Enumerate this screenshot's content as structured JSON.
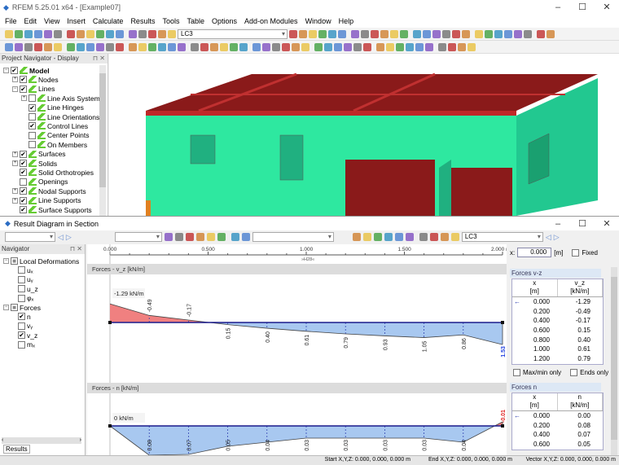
{
  "app": {
    "title": "RFEM 5.25.01 x64 - [Example07]",
    "win_controls": [
      "–",
      "☐",
      "✕"
    ]
  },
  "menu": [
    "File",
    "Edit",
    "View",
    "Insert",
    "Calculate",
    "Results",
    "Tools",
    "Table",
    "Options",
    "Add-on Modules",
    "Window",
    "Help"
  ],
  "toolbar": {
    "load_case": "LC3"
  },
  "toolbar_icon_colors": [
    "#e8c040",
    "#4a7fd0",
    "#c03030",
    "#40a040",
    "#8050c0",
    "#d08030",
    "#3090c0",
    "#707070"
  ],
  "project_navigator": {
    "title": "Project Navigator - Display",
    "items": [
      {
        "label": "Model",
        "level": 0,
        "checked": true,
        "exp": "−",
        "bold": true
      },
      {
        "label": "Nodes",
        "level": 1,
        "checked": true,
        "exp": "+"
      },
      {
        "label": "Lines",
        "level": 1,
        "checked": true,
        "exp": "−"
      },
      {
        "label": "Line Axis System",
        "level": 2,
        "checked": false,
        "exp": "+"
      },
      {
        "label": "Line Hinges",
        "level": 2,
        "checked": true,
        "exp": ""
      },
      {
        "label": "Line Orientations",
        "level": 2,
        "checked": false,
        "exp": ""
      },
      {
        "label": "Control Lines",
        "level": 2,
        "checked": true,
        "exp": ""
      },
      {
        "label": "Center Points",
        "level": 2,
        "checked": false,
        "exp": ""
      },
      {
        "label": "On Members",
        "level": 2,
        "checked": false,
        "exp": ""
      },
      {
        "label": "Surfaces",
        "level": 1,
        "checked": true,
        "exp": "+"
      },
      {
        "label": "Solids",
        "level": 1,
        "checked": true,
        "exp": "+"
      },
      {
        "label": "Solid Orthotropies",
        "level": 1,
        "checked": true,
        "exp": ""
      },
      {
        "label": "Openings",
        "level": 1,
        "checked": false,
        "exp": ""
      },
      {
        "label": "Nodal Supports",
        "level": 1,
        "checked": true,
        "exp": "+"
      },
      {
        "label": "Line Supports",
        "level": 1,
        "checked": true,
        "exp": "+"
      },
      {
        "label": "Surface Supports",
        "level": 1,
        "checked": true,
        "exp": ""
      }
    ]
  },
  "colors": {
    "walls": "#2ee8a0",
    "slabs": "#9b1e1e",
    "slab_edge": "#d03030",
    "negative_fill": "#f08080",
    "positive_fill": "#a8c8f0",
    "axis_line": "#1a1a8c",
    "accent": "#2b6cc4"
  },
  "dialog": {
    "title": "Result Diagram in Section",
    "load_case": "LC3",
    "win_controls": [
      "–",
      "☐",
      "✕"
    ],
    "navigator": {
      "title": "Navigator",
      "tab": "Results",
      "items": [
        {
          "label": "Local Deformations",
          "level": 0,
          "checked": "partial",
          "exp": "−"
        },
        {
          "label": "uₓ",
          "level": 1,
          "checked": false
        },
        {
          "label": "uᵧ",
          "level": 1,
          "checked": false
        },
        {
          "label": "u_z",
          "level": 1,
          "checked": false
        },
        {
          "label": "φₓ",
          "level": 1,
          "checked": false
        },
        {
          "label": "Forces",
          "level": 0,
          "checked": "partial",
          "exp": "−"
        },
        {
          "label": "n",
          "level": 1,
          "checked": true
        },
        {
          "label": "vᵧ",
          "level": 1,
          "checked": false
        },
        {
          "label": "v_z",
          "level": 1,
          "checked": true
        },
        {
          "label": "mₓ",
          "level": 1,
          "checked": false
        }
      ]
    },
    "ruler": {
      "ticks": [
        "0.000",
        "0.500",
        "1.000",
        "1.500",
        "2.000 m"
      ],
      "section_label": "»H28«"
    },
    "x_input": {
      "label": "x:",
      "value": "0.000",
      "unit": "[m]",
      "fixed_label": "Fixed",
      "fixed": false
    },
    "diagrams": [
      {
        "title": "Forces - v_z [kN/m]",
        "start_label": "-1.29 kN/m",
        "end_label": "1.53"
      },
      {
        "title": "Forces - n [kN/m]",
        "start_label": "0 kN/m",
        "end_label": "-0.01"
      }
    ],
    "tables": [
      {
        "title": "Forces v-z",
        "col1": "x\n[m]",
        "col2": "v_z\n[kN/m]",
        "marker": "MIN",
        "rows": [
          [
            "0.000",
            "-1.29"
          ],
          [
            "0.200",
            "-0.49"
          ],
          [
            "0.400",
            "-0.17"
          ],
          [
            "0.600",
            "0.15"
          ],
          [
            "0.800",
            "0.40"
          ],
          [
            "1.000",
            "0.61"
          ],
          [
            "1.200",
            "0.79"
          ]
        ],
        "maxmin_label": "Max/min only",
        "ends_label": "Ends only"
      },
      {
        "title": "Forces n",
        "col1": "x\n[m]",
        "col2": "n\n[kN/m]",
        "marker": "MAX",
        "rows": [
          [
            "0.000",
            "0.00"
          ],
          [
            "0.200",
            "0.08"
          ],
          [
            "0.400",
            "0.07"
          ],
          [
            "0.600",
            "0.05"
          ]
        ]
      }
    ],
    "status": {
      "start": "Start X,Y,Z:  0.000, 0.000, 0.000 m",
      "end": "End X,Y,Z:  0.000, 0.000, 0.000 m",
      "vector": "Vector X,Y,Z:  0.000, 0.000, 0.000 m"
    }
  },
  "chart_data": [
    {
      "type": "line",
      "title": "Forces - v_z [kN/m]",
      "x": [
        0,
        0.2,
        0.4,
        0.6,
        0.8,
        1.0,
        1.2,
        1.4,
        1.6,
        1.8,
        2.0
      ],
      "values": [
        -1.29,
        -0.49,
        -0.17,
        0.15,
        0.4,
        0.61,
        0.79,
        0.93,
        1.05,
        0.86,
        1.53
      ],
      "xlim": [
        0,
        2
      ]
    },
    {
      "type": "line",
      "title": "Forces - n [kN/m]",
      "x": [
        0,
        0.2,
        0.4,
        0.6,
        0.8,
        1.0,
        1.2,
        1.4,
        1.6,
        1.8,
        2.0
      ],
      "values": [
        0,
        0.08,
        0.07,
        0.05,
        0.04,
        0.03,
        0.03,
        0.03,
        0.03,
        0.04,
        -0.01
      ],
      "xlim": [
        0,
        2
      ]
    }
  ]
}
